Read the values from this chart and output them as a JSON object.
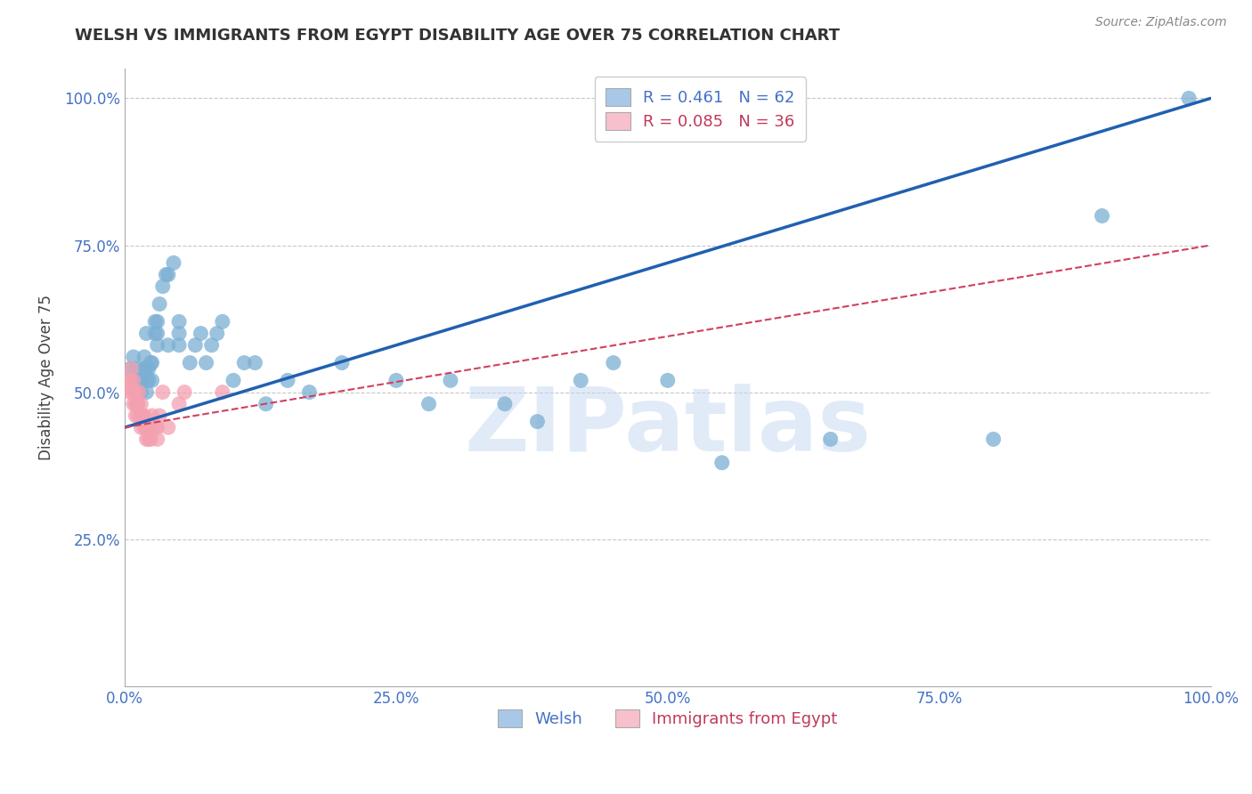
{
  "title": "WELSH VS IMMIGRANTS FROM EGYPT DISABILITY AGE OVER 75 CORRELATION CHART",
  "source": "Source: ZipAtlas.com",
  "ylabel": "Disability Age Over 75",
  "xlim": [
    0.0,
    1.0
  ],
  "ylim": [
    0.0,
    1.05
  ],
  "yticks": [
    0.25,
    0.5,
    0.75,
    1.0
  ],
  "ytick_labels": [
    "25.0%",
    "50.0%",
    "75.0%",
    "100.0%"
  ],
  "xtick_vals": [
    0.0,
    0.25,
    0.5,
    0.75,
    1.0
  ],
  "xtick_labels": [
    "0.0%",
    "25.0%",
    "50.0%",
    "75.0%",
    "100.0%"
  ],
  "welsh_R": 0.461,
  "welsh_N": 62,
  "egypt_R": 0.085,
  "egypt_N": 36,
  "welsh_color": "#7bafd4",
  "egypt_color": "#f4a0b0",
  "welsh_line_color": "#2060b0",
  "egypt_line_color": "#d04060",
  "legend_welsh_fill": "#a8c8e8",
  "legend_egypt_fill": "#f8c0cc",
  "welsh_line_x0": 0.0,
  "welsh_line_y0": 0.44,
  "welsh_line_x1": 1.0,
  "welsh_line_y1": 1.0,
  "egypt_line_x0": 0.0,
  "egypt_line_y0": 0.44,
  "egypt_line_x1": 1.0,
  "egypt_line_y1": 0.75,
  "welsh_x": [
    0.005,
    0.008,
    0.01,
    0.01,
    0.01,
    0.012,
    0.013,
    0.014,
    0.015,
    0.015,
    0.018,
    0.018,
    0.02,
    0.02,
    0.02,
    0.02,
    0.022,
    0.022,
    0.024,
    0.025,
    0.025,
    0.028,
    0.028,
    0.03,
    0.03,
    0.03,
    0.032,
    0.035,
    0.038,
    0.04,
    0.04,
    0.045,
    0.05,
    0.05,
    0.05,
    0.06,
    0.065,
    0.07,
    0.075,
    0.08,
    0.085,
    0.09,
    0.1,
    0.11,
    0.12,
    0.13,
    0.15,
    0.17,
    0.2,
    0.25,
    0.28,
    0.3,
    0.35,
    0.38,
    0.42,
    0.45,
    0.5,
    0.55,
    0.65,
    0.8,
    0.9,
    0.98
  ],
  "welsh_y": [
    0.54,
    0.56,
    0.5,
    0.52,
    0.54,
    0.48,
    0.5,
    0.52,
    0.5,
    0.52,
    0.54,
    0.56,
    0.5,
    0.52,
    0.54,
    0.6,
    0.52,
    0.54,
    0.55,
    0.52,
    0.55,
    0.6,
    0.62,
    0.58,
    0.6,
    0.62,
    0.65,
    0.68,
    0.7,
    0.58,
    0.7,
    0.72,
    0.58,
    0.6,
    0.62,
    0.55,
    0.58,
    0.6,
    0.55,
    0.58,
    0.6,
    0.62,
    0.52,
    0.55,
    0.55,
    0.48,
    0.52,
    0.5,
    0.55,
    0.52,
    0.48,
    0.52,
    0.48,
    0.45,
    0.52,
    0.55,
    0.52,
    0.38,
    0.42,
    0.42,
    0.8,
    1.0
  ],
  "egypt_x": [
    0.003,
    0.005,
    0.005,
    0.006,
    0.007,
    0.008,
    0.008,
    0.009,
    0.01,
    0.01,
    0.01,
    0.012,
    0.012,
    0.013,
    0.015,
    0.015,
    0.015,
    0.016,
    0.018,
    0.018,
    0.02,
    0.02,
    0.022,
    0.022,
    0.024,
    0.025,
    0.025,
    0.028,
    0.03,
    0.03,
    0.032,
    0.035,
    0.04,
    0.05,
    0.055,
    0.09
  ],
  "egypt_y": [
    0.52,
    0.5,
    0.52,
    0.54,
    0.5,
    0.48,
    0.52,
    0.5,
    0.46,
    0.48,
    0.5,
    0.46,
    0.48,
    0.5,
    0.44,
    0.46,
    0.48,
    0.46,
    0.44,
    0.46,
    0.42,
    0.44,
    0.42,
    0.44,
    0.42,
    0.44,
    0.46,
    0.44,
    0.42,
    0.44,
    0.46,
    0.5,
    0.44,
    0.48,
    0.5,
    0.5
  ],
  "watermark": "ZIPatlas",
  "background_color": "#ffffff",
  "grid_color": "#c8c8c8"
}
